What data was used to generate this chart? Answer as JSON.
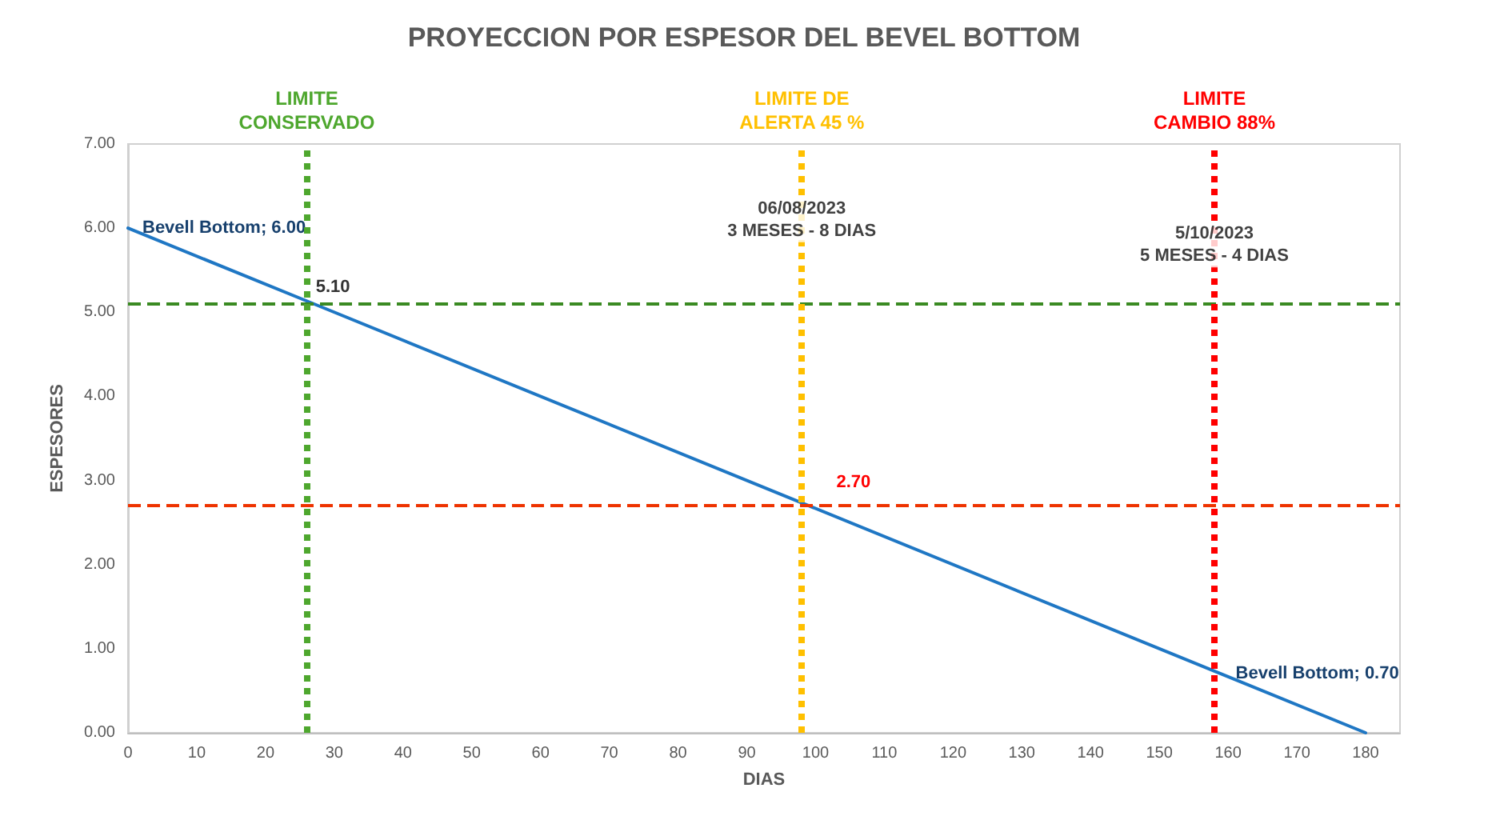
{
  "chart_data": {
    "type": "line",
    "title": "PROYECCION POR ESPESOR DEL BEVEL BOTTOM",
    "xlabel": "DIAS",
    "ylabel": "ESPESORES",
    "xlim": [
      0,
      185
    ],
    "xticks": [
      0,
      10,
      20,
      30,
      40,
      50,
      60,
      70,
      80,
      90,
      100,
      110,
      120,
      130,
      140,
      150,
      160,
      170,
      180
    ],
    "ylim": [
      0,
      7
    ],
    "yticks": [
      {
        "value": 0,
        "label": "0.00"
      },
      {
        "value": 1,
        "label": "1.00"
      },
      {
        "value": 2,
        "label": "2.00"
      },
      {
        "value": 3,
        "label": "3.00"
      },
      {
        "value": 4,
        "label": "4.00"
      },
      {
        "value": 5,
        "label": "5.00"
      },
      {
        "value": 6,
        "label": "6.00"
      },
      {
        "value": 7,
        "label": "7.00"
      }
    ],
    "grid": false,
    "marker": "none",
    "line_style": "solid",
    "series": [
      {
        "color": "#1f77c4",
        "x": [
          0,
          27,
          99,
          159,
          180
        ],
        "values": [
          6.0,
          5.1,
          2.7,
          0.7,
          0
        ],
        "value_labels": [
          "Bevell Bottom; 6.00",
          "5.10",
          "2.70",
          "Bevell Bottom; 0.70",
          null
        ]
      }
    ],
    "ref_lines": [
      {
        "axis": "y",
        "value": 5.1,
        "color": "#3a8a22",
        "line_style": "dashed"
      },
      {
        "axis": "y",
        "value": 2.7,
        "color": "#ee3300",
        "line_style": "dashed"
      },
      {
        "axis": "x",
        "value": 26,
        "label": "LIMITE\nCONSERVADO",
        "color": "#4ea72e",
        "line_style": "dotted"
      },
      {
        "axis": "x",
        "value": 98,
        "label": "LIMITE DE\nALERTA 45 %",
        "color": "#ffc000",
        "line_style": "dotted"
      },
      {
        "axis": "x",
        "value": 158,
        "label": "LIMITE\nCAMBIO 88%",
        "color": "#ff0000",
        "line_style": "dotted"
      }
    ],
    "annotations": [
      {
        "text": "06/08/2023\n3 MESES - 8 DIAS",
        "x": 98,
        "y": 6.1
      },
      {
        "text": "5/10/2023\n5 MESES - 4 DIAS",
        "x": 158,
        "y": 5.8
      }
    ]
  }
}
